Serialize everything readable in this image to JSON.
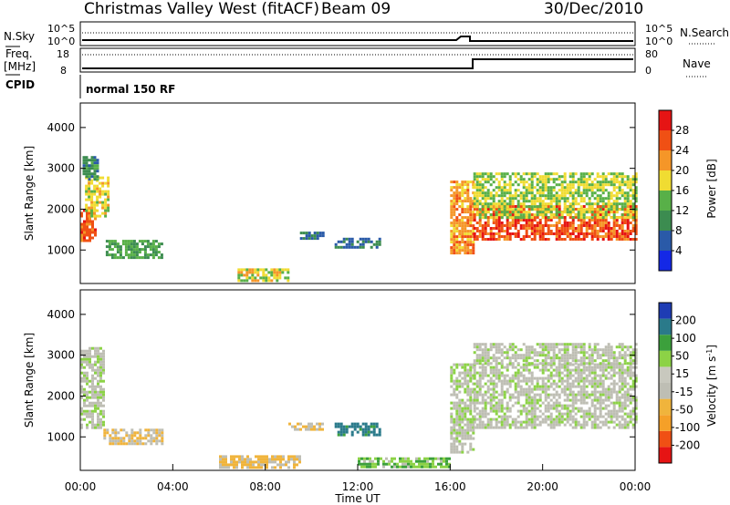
{
  "header": {
    "station": "Christmas Valley West (fitACF)",
    "beam": "Beam 09",
    "date": "30/Dec/2010"
  },
  "top_panels": {
    "nsky_label": "N.Sky",
    "nsky_ticks": [
      "10^5",
      "10^0"
    ],
    "nsearch_label": "N.Search",
    "nsearch_ticks": [
      "10^5",
      "10^0"
    ],
    "freq_label_line1": "Freq.",
    "freq_label_line2": "[MHz]",
    "freq_ticks": [
      "18",
      "8"
    ],
    "nave_label": "Nave",
    "nave_ticks": [
      "80",
      "0"
    ],
    "cpid_label": "CPID",
    "cpid_value": "normal 150 RF"
  },
  "colors": {
    "power_scale": [
      "#1428e6",
      "#2a5aa8",
      "#3c8c50",
      "#58b048",
      "#f0dc32",
      "#f59628",
      "#f05014",
      "#e61414"
    ],
    "velocity_scale": [
      "#e61414",
      "#f05014",
      "#f5a028",
      "#f0b43c",
      "#bebeb4",
      "#c8c8be",
      "#8cd246",
      "#3ca03c",
      "#2a7a8a",
      "#1e3cb4"
    ],
    "ground_scatter": "#bebeb4"
  },
  "chart_data": [
    {
      "type": "heatmap",
      "name": "power",
      "ylabel": "Slant Range [km]",
      "yticks": [
        "1000",
        "2000",
        "3000",
        "4000"
      ],
      "ylim": [
        180,
        4600
      ],
      "colorbar_label": "Power [dB]",
      "colorbar_ticks": [
        "4",
        "8",
        "12",
        "16",
        "20",
        "24",
        "28"
      ],
      "colorbar_range": [
        0,
        32
      ],
      "regions": [
        {
          "t0": 0.0,
          "t1": 0.7,
          "r0": 1200,
          "r1": 2000,
          "value": 26
        },
        {
          "t0": 0.2,
          "t1": 1.2,
          "r0": 1800,
          "r1": 2800,
          "value": 18
        },
        {
          "t0": 0.1,
          "t1": 0.8,
          "r0": 2700,
          "r1": 3300,
          "value": 10
        },
        {
          "t0": 1.1,
          "t1": 3.5,
          "r0": 800,
          "r1": 1250,
          "value": 12
        },
        {
          "t0": 6.8,
          "t1": 9.0,
          "r0": 250,
          "r1": 550,
          "value": 18
        },
        {
          "t0": 9.5,
          "t1": 10.5,
          "r0": 1250,
          "r1": 1450,
          "value": 8
        },
        {
          "t0": 11.0,
          "t1": 13.0,
          "r0": 1050,
          "r1": 1300,
          "value": 8
        },
        {
          "t0": 16.0,
          "t1": 17.0,
          "r0": 900,
          "r1": 2700,
          "value": 22
        },
        {
          "t0": 17.0,
          "t1": 24.0,
          "r0": 1250,
          "r1": 2100,
          "value": 26
        },
        {
          "t0": 17.0,
          "t1": 24.0,
          "r0": 1800,
          "r1": 2900,
          "value": 16
        }
      ]
    },
    {
      "type": "heatmap",
      "name": "velocity",
      "ylabel": "Slant Range [km]",
      "yticks": [
        "1000",
        "2000",
        "3000",
        "4000"
      ],
      "ylim": [
        180,
        4600
      ],
      "xlabel": "Time UT",
      "xticks": [
        "00:00",
        "04:00",
        "08:00",
        "12:00",
        "16:00",
        "20:00",
        "00:00"
      ],
      "xlim": [
        0,
        24
      ],
      "colorbar_label": "Velocity [m s^-1]",
      "colorbar_ticks": [
        "-200",
        "-100",
        "-50",
        "-15",
        "15",
        "50",
        "100",
        "200"
      ],
      "regions": [
        {
          "t0": 0.0,
          "t1": 1.0,
          "r0": 1200,
          "r1": 3200,
          "value": 0
        },
        {
          "t0": 1.0,
          "t1": 3.5,
          "r0": 800,
          "r1": 1200,
          "value": -50
        },
        {
          "t0": 6.0,
          "t1": 9.5,
          "r0": 250,
          "r1": 550,
          "value": -60
        },
        {
          "t0": 9.0,
          "t1": 10.5,
          "r0": 1150,
          "r1": 1350,
          "value": -40
        },
        {
          "t0": 11.0,
          "t1": 13.0,
          "r0": 1050,
          "r1": 1350,
          "value": 120
        },
        {
          "t0": 12.0,
          "t1": 16.0,
          "r0": 250,
          "r1": 500,
          "value": 40
        },
        {
          "t0": 16.0,
          "t1": 17.0,
          "r0": 600,
          "r1": 2800,
          "value": 0
        },
        {
          "t0": 17.0,
          "t1": 24.0,
          "r0": 1200,
          "r1": 2800,
          "value": 0
        },
        {
          "t0": 17.0,
          "t1": 24.0,
          "r0": 2800,
          "r1": 3300,
          "value": 0
        }
      ]
    }
  ]
}
